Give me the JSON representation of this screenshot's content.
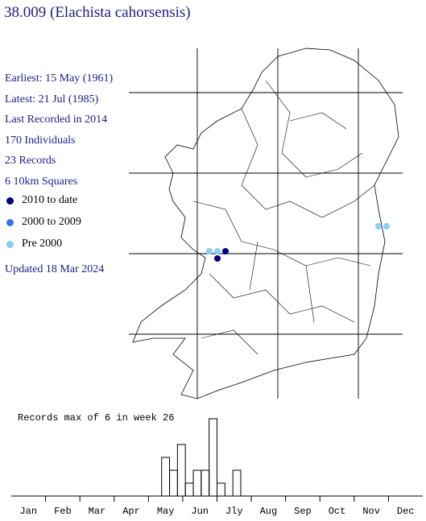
{
  "header": {
    "title": "38.009 (Elachista cahorsensis)"
  },
  "info": [
    "Earliest: 15 May (1961)",
    "Latest: 21 Jul (1985)",
    "Last Recorded in 2014",
    "170 Individuals",
    "23 Records",
    "6 10km Squares"
  ],
  "legend": [
    {
      "label": "2010 to date",
      "color": "#000080"
    },
    {
      "label": "2000 to 2009",
      "color": "#3a72e6"
    },
    {
      "label": "Pre 2000",
      "color": "#8ccdf5"
    }
  ],
  "updated": "Updated 18 Mar 2024",
  "chart_data": {
    "type": "bar",
    "title": "Records max of 6 in week 26",
    "months": [
      "Jan",
      "Feb",
      "Mar",
      "Apr",
      "May",
      "Jun",
      "Jly",
      "Aug",
      "Sep",
      "Oct",
      "Nov",
      "Dec"
    ],
    "values": [
      0,
      0,
      0,
      0,
      0,
      0,
      0,
      0,
      0,
      0,
      0,
      0,
      0,
      0,
      0,
      0,
      0,
      0,
      0,
      3,
      2,
      4,
      1,
      2,
      2,
      6,
      1,
      0,
      2,
      0,
      0,
      0,
      0,
      0,
      0,
      0,
      0,
      0,
      0,
      0,
      0,
      0,
      0,
      0,
      0,
      0,
      0,
      0,
      0,
      0,
      0,
      0
    ],
    "ylim": [
      0,
      6
    ]
  }
}
